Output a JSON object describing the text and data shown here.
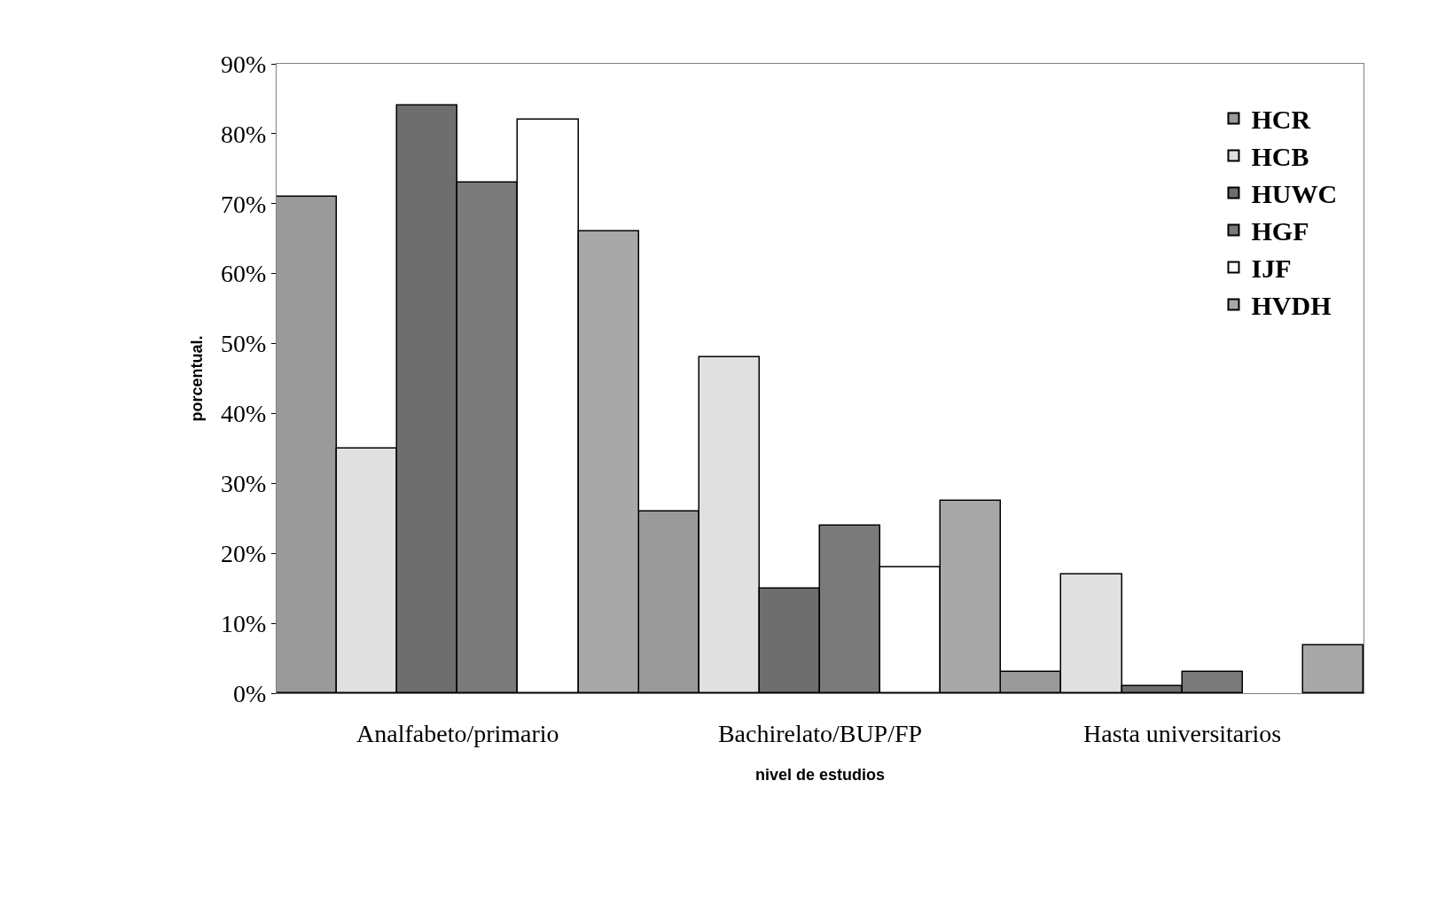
{
  "chart_data": {
    "type": "bar",
    "xlabel": "nivel de estudios",
    "ylabel": "porcentual.",
    "categories": [
      "Analfabeto/primario",
      "Bachirelato/BUP/FP",
      "Hasta universitarios"
    ],
    "series": [
      {
        "name": "HCR",
        "color": "#9a9a9a",
        "values": [
          71,
          26,
          3
        ]
      },
      {
        "name": "HCB",
        "color": "#e0e0e0",
        "values": [
          35,
          48,
          17
        ]
      },
      {
        "name": "HUWC",
        "color": "#6e6e6e",
        "values": [
          84,
          15,
          1
        ]
      },
      {
        "name": "HGF",
        "color": "#7a7a7a",
        "values": [
          73,
          24,
          3
        ]
      },
      {
        "name": "IJF",
        "color": "#ffffff",
        "values": [
          82,
          18,
          null
        ]
      },
      {
        "name": "HVDH",
        "color": "#a8a8a8",
        "values": [
          66,
          27.5,
          6.8
        ]
      }
    ],
    "ylim": [
      0,
      90
    ],
    "yticks": [
      {
        "value": 0,
        "label": "0%"
      },
      {
        "value": 10,
        "label": "10%"
      },
      {
        "value": 20,
        "label": "20%"
      },
      {
        "value": 30,
        "label": "30%"
      },
      {
        "value": 40,
        "label": "40%"
      },
      {
        "value": 50,
        "label": "50%"
      },
      {
        "value": 60,
        "label": "60%"
      },
      {
        "value": 70,
        "label": "70%"
      },
      {
        "value": 80,
        "label": "80%"
      },
      {
        "value": 90,
        "label": "90%"
      }
    ],
    "legend": "top right"
  }
}
